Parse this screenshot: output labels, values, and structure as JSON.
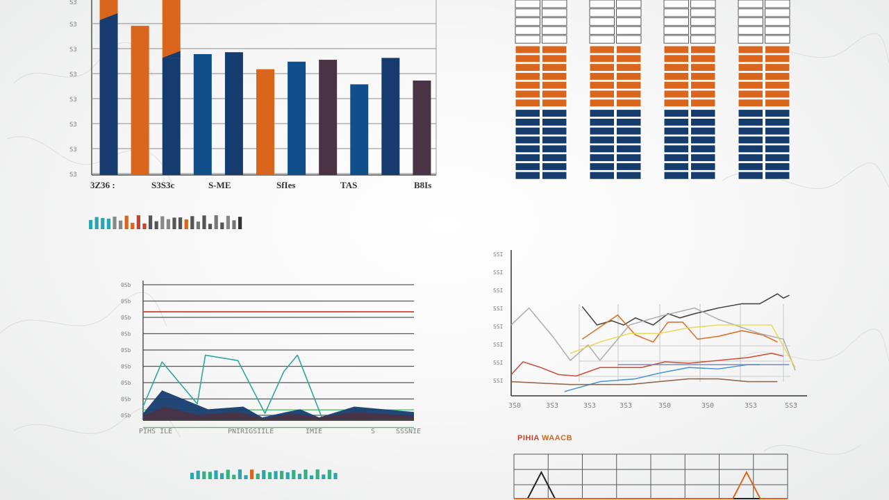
{
  "colors": {
    "navy": "#163c6e",
    "orange": "#d9661c",
    "blue": "#114f8c",
    "plum": "#4a3443",
    "teal": "#2fa79a",
    "red": "#c9422c",
    "green": "#4fbf6b",
    "grid": "#6b6b6b"
  },
  "chart_data": [
    {
      "id": "top-left-bar",
      "type": "bar",
      "grid": true,
      "ylim": [
        0,
        100
      ],
      "y_ticks": [
        "S3",
        "S3",
        "S3",
        "S3",
        "S3",
        "S3",
        "S3"
      ],
      "category_labels": [
        "3Z36 :",
        "S3S3c",
        "S-ME",
        "SfIes",
        "TAS",
        "B8Is"
      ],
      "bars": [
        {
          "base": 82,
          "stack": 18,
          "color": "navy",
          "stack_color": "orange"
        },
        {
          "base": 79,
          "stack": 0,
          "color": "orange",
          "stack_color": ""
        },
        {
          "base": 62,
          "stack": 33,
          "color": "navy",
          "stack_color": "orange"
        },
        {
          "base": 64,
          "stack": 0,
          "color": "blue",
          "stack_color": ""
        },
        {
          "base": 65,
          "stack": 0,
          "color": "navy",
          "stack_color": ""
        },
        {
          "base": 56,
          "stack": 0,
          "color": "orange",
          "stack_color": ""
        },
        {
          "base": 60,
          "stack": 0,
          "color": "blue",
          "stack_color": ""
        },
        {
          "base": 61,
          "stack": 0,
          "color": "plum",
          "stack_color": ""
        },
        {
          "base": 48,
          "stack": 0,
          "color": "blue",
          "stack_color": ""
        },
        {
          "base": 62,
          "stack": 0,
          "color": "navy",
          "stack_color": ""
        },
        {
          "base": 50,
          "stack": 0,
          "color": "plum",
          "stack_color": ""
        }
      ]
    },
    {
      "id": "top-right-grid",
      "type": "table",
      "columns": 4,
      "rows_white": 5,
      "rows_orange": 7,
      "rows_navy": 8,
      "cells_per_row": 2
    },
    {
      "id": "bottom-left-line",
      "type": "line",
      "grid": true,
      "ylim": [
        0,
        100
      ],
      "y_ticks": [
        "0Sb",
        "0Sb",
        "0Sb",
        "0Sb",
        "0Sb",
        "0Sb",
        "0Sb",
        "0Sb",
        "0Sb"
      ],
      "x_label_segments": [
        "PIHS  ILE",
        "PNIRIGSIILE",
        "IMIE",
        "S",
        "SSSNIE"
      ],
      "series": [
        {
          "role": "teal-line",
          "color": "teal",
          "x": [
            0,
            7,
            20,
            23,
            35,
            45,
            52,
            57,
            66,
            72
          ],
          "y": [
            10,
            43,
            12,
            48,
            44,
            5,
            36,
            48,
            2,
            3
          ]
        },
        {
          "role": "red-line",
          "color": "red",
          "x": [
            0,
            100
          ],
          "y": [
            80,
            80
          ]
        },
        {
          "role": "navy-area",
          "color": "navy",
          "x": [
            0,
            7,
            24,
            37,
            44,
            53,
            58,
            65,
            78,
            100
          ],
          "y": [
            5,
            22,
            8,
            10,
            2,
            6,
            8,
            2,
            10,
            6
          ]
        },
        {
          "role": "plum-area",
          "color": "plum",
          "x": [
            0,
            8,
            20,
            35,
            45,
            55,
            65,
            78,
            100
          ],
          "y": [
            3,
            10,
            4,
            6,
            1,
            5,
            2,
            6,
            3
          ]
        }
      ],
      "extra_lines": [
        {
          "color": "green",
          "y": 24
        },
        {
          "color": "green",
          "y": 11
        }
      ]
    },
    {
      "id": "bottom-right-multiline",
      "type": "line",
      "grid": true,
      "y_ticks": [
        "SSI",
        "SSI",
        "SSI",
        "SSI",
        "SSI",
        "SSI",
        "SSI",
        "SSI"
      ],
      "x_ticks": [
        "3S0",
        "3S3",
        "3S3",
        "3S3",
        "3S0",
        "3S0",
        "3S3",
        "SS3"
      ],
      "series": [
        {
          "color": "#333333",
          "x": [
            24,
            29,
            34,
            38,
            42,
            48,
            53,
            57,
            62,
            70,
            78,
            84,
            90,
            92,
            94
          ],
          "y": [
            63,
            50,
            53,
            50,
            55,
            50,
            58,
            55,
            58,
            62,
            65,
            65,
            72,
            69,
            71
          ]
        },
        {
          "color": "#d9661c",
          "x": [
            24,
            36,
            42,
            48,
            53,
            58,
            63,
            70,
            78,
            85,
            90
          ],
          "y": [
            40,
            57,
            43,
            38,
            52,
            52,
            40,
            42,
            46,
            43,
            38
          ]
        },
        {
          "color": "#c9422c",
          "x": [
            0,
            4,
            10,
            16,
            22,
            30,
            44,
            52,
            60,
            70,
            80,
            88,
            92
          ],
          "y": [
            15,
            24,
            20,
            15,
            14,
            20,
            20,
            24,
            23,
            25,
            27,
            30,
            28
          ]
        },
        {
          "color": "#3c8bd0",
          "x": [
            18,
            30,
            42,
            50,
            60,
            70,
            80,
            84
          ],
          "y": [
            3,
            10,
            12,
            16,
            20,
            19,
            22,
            22
          ]
        },
        {
          "color": "#a8a8a8",
          "x": [
            0,
            6,
            14,
            20,
            26,
            30,
            40,
            50,
            62,
            70,
            84,
            92,
            96
          ],
          "y": [
            50,
            62,
            42,
            25,
            36,
            25,
            50,
            56,
            62,
            54,
            44,
            40,
            18
          ]
        },
        {
          "color": "#e6d84a",
          "x": [
            20,
            30,
            40,
            50,
            60,
            70,
            80,
            88,
            96
          ],
          "y": [
            30,
            38,
            44,
            44,
            48,
            50,
            50,
            50,
            20
          ]
        },
        {
          "color": "#6c7fb1",
          "x": [
            36,
            50,
            60,
            70,
            80,
            86,
            94
          ],
          "y": [
            22,
            22,
            22,
            22,
            22,
            22,
            22
          ]
        },
        {
          "color": "#8b5a3c",
          "x": [
            0,
            10,
            20,
            30,
            40,
            50,
            60,
            70,
            80,
            90
          ],
          "y": [
            10,
            9,
            8,
            8,
            8,
            10,
            12,
            12,
            10,
            10
          ]
        }
      ]
    },
    {
      "id": "bottom-right-small",
      "type": "line",
      "title": "PIHIA WAACB",
      "grid": true,
      "series": [
        {
          "color": "#222222",
          "x": [
            0,
            5,
            10,
            15,
            100
          ],
          "y": [
            0,
            0,
            100,
            0,
            0
          ]
        },
        {
          "color": "#d9661c",
          "x": [
            0,
            80,
            85,
            90,
            100
          ],
          "y": [
            0,
            0,
            100,
            0,
            0
          ]
        }
      ]
    }
  ],
  "caption_strips": [
    {
      "id": "caption-top",
      "colors": [
        "#2aa6b3",
        "#2aa6b3",
        "#2aa6b3",
        "#2aa6b3",
        "#888888",
        "#888888",
        "#d9661c",
        "#d9661c",
        "#c9422c",
        "#c9422c",
        "#555555",
        "#555555",
        "#888888",
        "#888888",
        "#555555",
        "#555555",
        "#d9661c",
        "#555555",
        "#777777",
        "#555555",
        "#555555",
        "#777777",
        "#555555",
        "#888888",
        "#777777",
        "#333333"
      ]
    },
    {
      "id": "caption-bottom",
      "colors": [
        "#2aa6b3",
        "#2aa6b3",
        "#36b080",
        "#36b080",
        "#2aa6b3",
        "#2aa6b3",
        "#36b080",
        "#36b080",
        "#2aa6b3",
        "#2aa6b3",
        "#d9661c",
        "#36b080",
        "#2aa6b3",
        "#36b080",
        "#2aa6b3",
        "#36b080",
        "#2aa6b3",
        "#36b080",
        "#2aa6b3",
        "#36b080",
        "#2aa6b3",
        "#36b080",
        "#2aa6b3",
        "#36b080",
        "#2aa6b3",
        "#36b080"
      ]
    }
  ]
}
